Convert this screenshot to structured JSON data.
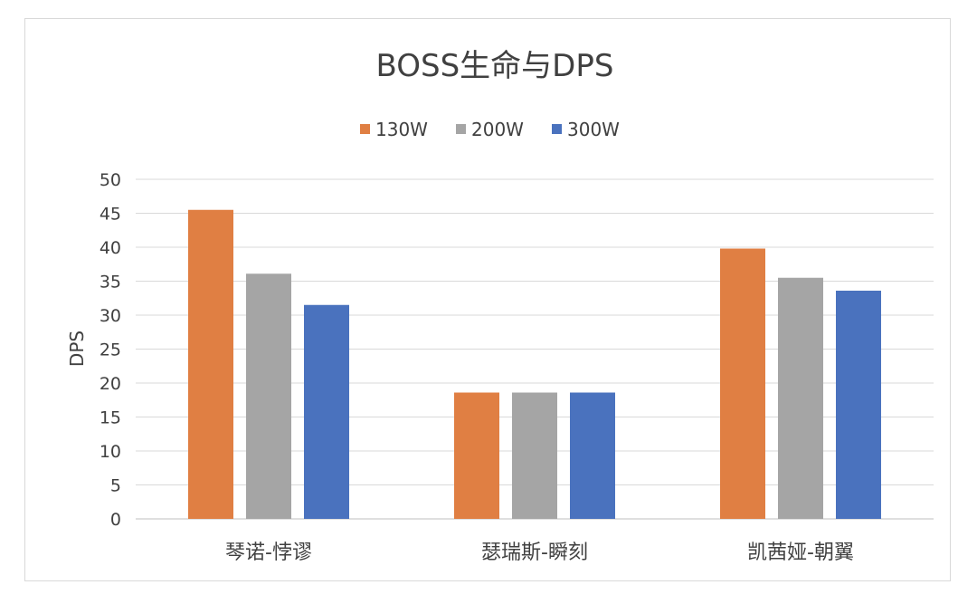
{
  "chart_data": {
    "type": "bar",
    "title": "BOSS生命与DPS",
    "xlabel": "",
    "ylabel": "DPS",
    "ylim": [
      0,
      50
    ],
    "yticks": [
      0,
      5,
      10,
      15,
      20,
      25,
      30,
      35,
      40,
      45,
      50
    ],
    "grid": true,
    "legend_position": "top",
    "categories": [
      "琴诺-悖谬",
      "瑟瑞斯-瞬刻",
      "凯茜娅-朝翼"
    ],
    "series": [
      {
        "name": "130W",
        "color": "#e07f43",
        "values": [
          45.5,
          18.6,
          39.8
        ]
      },
      {
        "name": "200W",
        "color": "#a5a5a5",
        "values": [
          36.1,
          18.6,
          35.5
        ]
      },
      {
        "name": "300W",
        "color": "#4a72be",
        "values": [
          31.5,
          18.6,
          33.6
        ]
      }
    ]
  }
}
